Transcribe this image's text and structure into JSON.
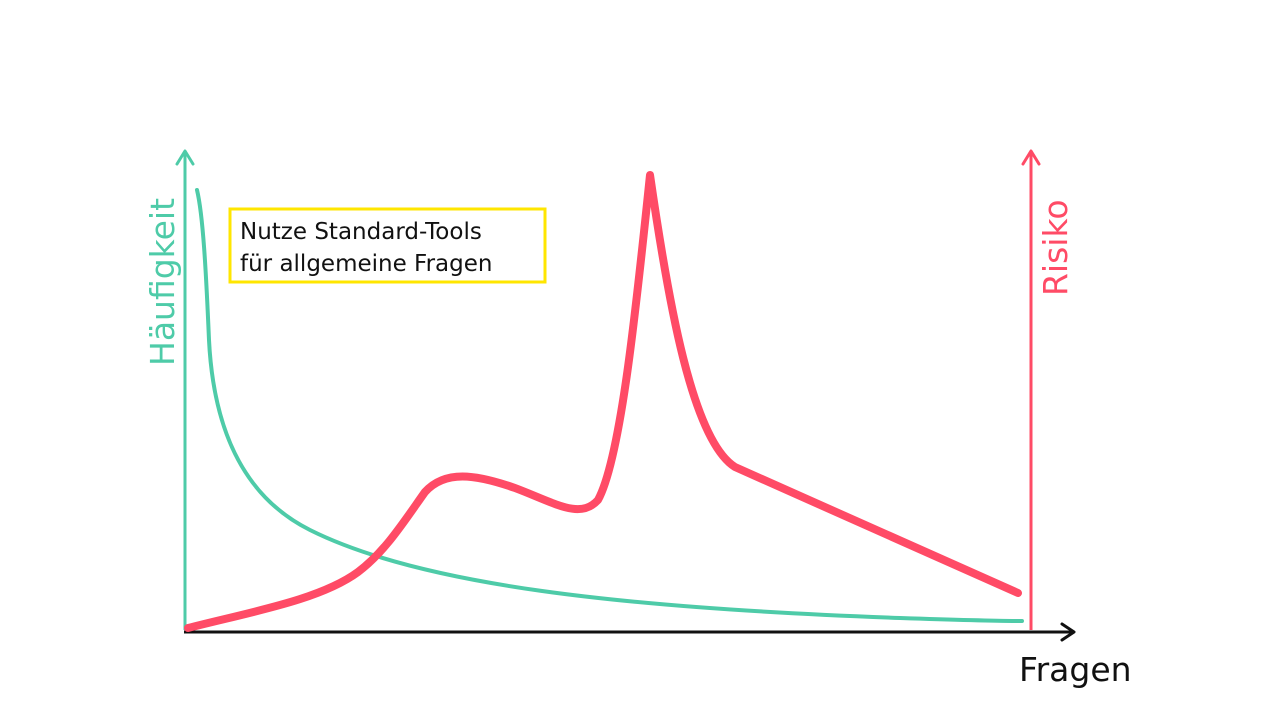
{
  "labels": {
    "left_axis": "Häufigkeit",
    "right_axis": "Risiko",
    "x_axis": "Fragen"
  },
  "note": {
    "line1": "Nutze Standard-Tools",
    "line2": "für allgemeine Fragen"
  },
  "colors": {
    "frequency": "#4ecba8",
    "risk": "#ff4b66",
    "axis": "#111111",
    "note_border": "#ffe600",
    "text": "#111111"
  }
}
